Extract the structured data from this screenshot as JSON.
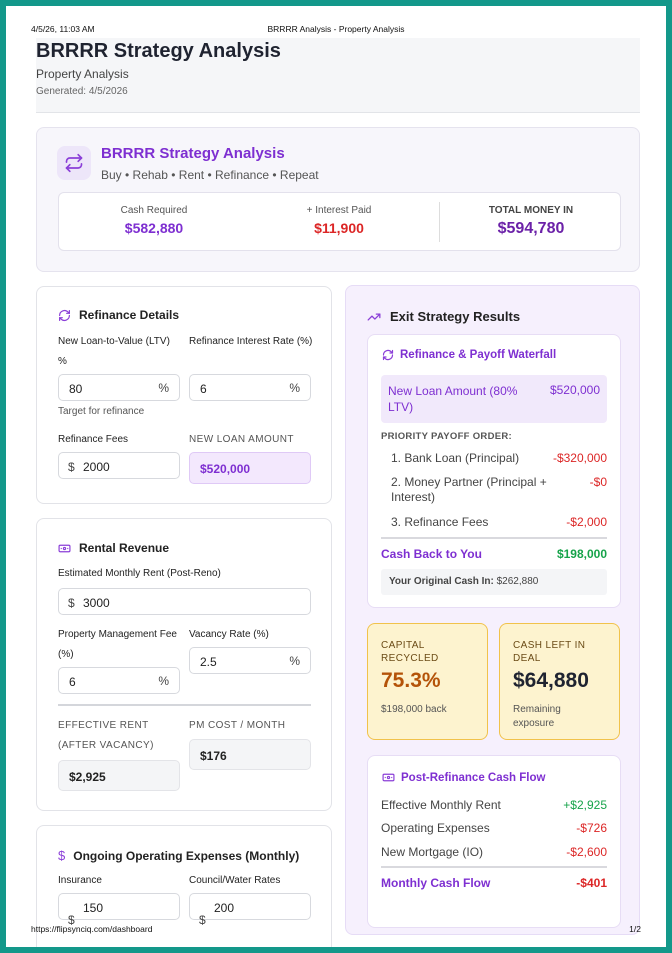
{
  "print_header": {
    "datetime": "4/5/26, 11:03 AM",
    "title": "BRRRR Analysis - Property Analysis"
  },
  "print_footer": {
    "url": "https://flipsynciq.com/dashboard",
    "page": "1/2"
  },
  "header": {
    "title": "BRRRR Strategy Analysis",
    "subtitle": "Property Analysis",
    "generated": "Generated: 4/5/2026"
  },
  "banner": {
    "title": "BRRRR Strategy Analysis",
    "subtitle": "Buy • Rehab • Rent • Refinance • Repeat",
    "stats": {
      "cash_required": {
        "label": "Cash Required",
        "value": "$582,880"
      },
      "interest_paid": {
        "label": "+ Interest Paid",
        "value": "$11,900"
      },
      "total_money_in": {
        "label": "TOTAL MONEY IN",
        "value": "$594,780"
      }
    }
  },
  "refinance": {
    "title": "Refinance Details",
    "ltv_label": "New Loan-to-Value (LTV) %",
    "ltv_value": "80",
    "ltv_suffix": "%",
    "ltv_hint": "Target for refinance",
    "rate_label": "Refinance Interest Rate (%)",
    "rate_value": "6",
    "rate_suffix": "%",
    "fees_label": "Refinance Fees",
    "fees_prefix": "$",
    "fees_value": "2000",
    "new_loan_label": "NEW LOAN AMOUNT",
    "new_loan_value": "$520,000"
  },
  "rental": {
    "title": "Rental Revenue",
    "rent_label": "Estimated Monthly Rent (Post-Reno)",
    "rent_prefix": "$",
    "rent_value": "3000",
    "pm_label": "Property Management Fee (%)",
    "pm_value": "6",
    "pm_suffix": "%",
    "vacancy_label": "Vacancy Rate (%)",
    "vacancy_value": "2.5",
    "vacancy_suffix": "%",
    "eff_label": "EFFECTIVE RENT (AFTER VACANCY)",
    "eff_value": "$2,925",
    "pmcost_label": "PM COST / MONTH",
    "pmcost_value": "$176"
  },
  "opex": {
    "title": "Ongoing Operating Expenses (Monthly)",
    "title_icon": "$",
    "insurance_label": "Insurance",
    "insurance_prefix": "$",
    "insurance_value": "150",
    "council_label": "Council/Water Rates",
    "council_prefix": "$",
    "council_value": "200"
  },
  "exit": {
    "title": "Exit Strategy Results",
    "waterfall": {
      "title": "Refinance & Payoff Waterfall",
      "new_loan_label": "New Loan Amount (80% LTV)",
      "new_loan_value": "$520,000",
      "priority_label": "PRIORITY PAYOFF ORDER:",
      "items": [
        {
          "label": "1. Bank Loan (Principal)",
          "amount": "-$320,000"
        },
        {
          "label": "2. Money Partner (Principal + Interest)",
          "amount": "-$0"
        },
        {
          "label": "3. Refinance Fees",
          "amount": "-$2,000"
        }
      ],
      "cash_back_label": "Cash Back to You",
      "cash_back_value": "$198,000",
      "original_cash_label": "Your Original Cash In:",
      "original_cash_value": "$262,880"
    },
    "capital_recycled": {
      "label": "CAPITAL RECYCLED",
      "value": "75.3%",
      "sub": "$198,000 back"
    },
    "cash_left": {
      "label": "CASH LEFT IN DEAL",
      "value": "$64,880",
      "sub": "Remaining exposure"
    },
    "cashflow": {
      "title": "Post-Refinance Cash Flow",
      "rows": [
        {
          "label": "Effective Monthly Rent",
          "value": "+$2,925"
        },
        {
          "label": "Operating Expenses",
          "value": "-$726"
        },
        {
          "label": "New Mortgage (IO)",
          "value": "-$2,600"
        }
      ],
      "monthly_label": "Monthly Cash Flow",
      "monthly_value": "-$401"
    }
  },
  "colors": {
    "accent": "#7e2fd1",
    "negative": "#dc2626",
    "positive": "#16a34a",
    "frame": "#13988a",
    "tile_bg": "#fdf3cf"
  }
}
